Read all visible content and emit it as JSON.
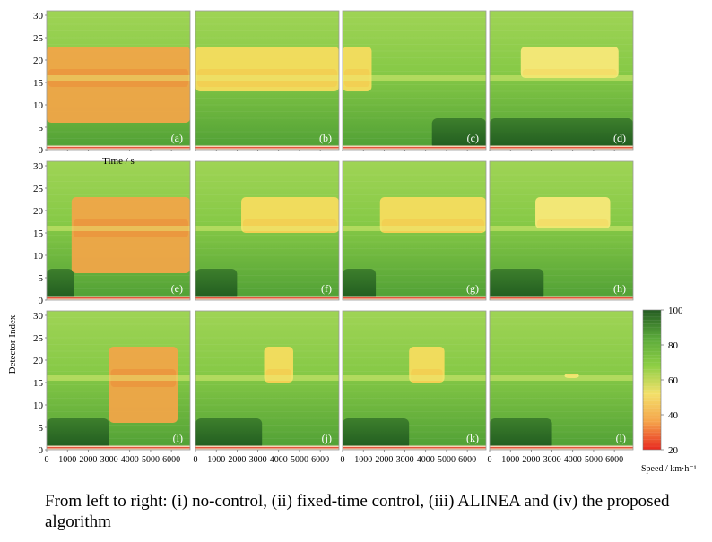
{
  "chart_data": {
    "type": "heatmap",
    "layout": "3x4 grid of space-time speed contour panels",
    "x_axis": {
      "label": "Time / s",
      "range": [
        0,
        6900
      ],
      "ticks": [
        0,
        1000,
        2000,
        3000,
        4000,
        5000,
        6000
      ]
    },
    "y_axis": {
      "label": "Detector Index",
      "range": [
        0,
        31
      ],
      "ticks": [
        0,
        5,
        10,
        15,
        20,
        25,
        30
      ]
    },
    "colorbar": {
      "label": "Speed / km·h⁻¹",
      "range": [
        20,
        100
      ],
      "ticks": [
        20,
        40,
        60,
        80,
        100
      ],
      "stops": [
        "#e8281f",
        "#f5a34a",
        "#f3e06a",
        "#8ecf45",
        "#5aa93a",
        "#245c22"
      ]
    },
    "panels": [
      {
        "label": "(a)",
        "row": 1,
        "col": 1,
        "congestion": [
          0,
          6900
        ],
        "congested_detectors": [
          6,
          23
        ],
        "severity": "high",
        "upstream_low_speed": null
      },
      {
        "label": "(b)",
        "row": 1,
        "col": 2,
        "congestion": [
          0,
          6900
        ],
        "congested_detectors": [
          13,
          23
        ],
        "severity": "medium",
        "upstream_low_speed": null
      },
      {
        "label": "(c)",
        "row": 1,
        "col": 3,
        "congestion": [
          0,
          1400
        ],
        "congested_detectors": [
          13,
          23
        ],
        "severity": "medium",
        "upstream_low_speed": [
          4300,
          6900
        ]
      },
      {
        "label": "(d)",
        "row": 1,
        "col": 4,
        "congestion": [
          1500,
          6200
        ],
        "congested_detectors": [
          16,
          23
        ],
        "severity": "light",
        "upstream_low_speed": [
          0,
          6900
        ]
      },
      {
        "label": "(e)",
        "row": 2,
        "col": 1,
        "congestion": [
          1200,
          6900
        ],
        "congested_detectors": [
          6,
          23
        ],
        "severity": "high",
        "upstream_low_speed": [
          0,
          1300
        ]
      },
      {
        "label": "(f)",
        "row": 2,
        "col": 2,
        "congestion": [
          2200,
          6900
        ],
        "congested_detectors": [
          15,
          23
        ],
        "severity": "medium",
        "upstream_low_speed": [
          0,
          2000
        ]
      },
      {
        "label": "(g)",
        "row": 2,
        "col": 3,
        "congestion": [
          1800,
          6900
        ],
        "congested_detectors": [
          15,
          23
        ],
        "severity": "medium",
        "upstream_low_speed": [
          0,
          1600
        ]
      },
      {
        "label": "(h)",
        "row": 2,
        "col": 4,
        "congestion": [
          2200,
          5800
        ],
        "congested_detectors": [
          16,
          23
        ],
        "severity": "light",
        "upstream_low_speed": [
          0,
          2600
        ]
      },
      {
        "label": "(i)",
        "row": 3,
        "col": 1,
        "congestion": [
          3000,
          6300
        ],
        "congested_detectors": [
          6,
          23
        ],
        "severity": "high",
        "upstream_low_speed": [
          0,
          3000
        ]
      },
      {
        "label": "(j)",
        "row": 3,
        "col": 2,
        "congestion": [
          3300,
          4700
        ],
        "congested_detectors": [
          15,
          23
        ],
        "severity": "medium",
        "upstream_low_speed": [
          0,
          3200
        ]
      },
      {
        "label": "(k)",
        "row": 3,
        "col": 3,
        "congestion": [
          3200,
          4900
        ],
        "congested_detectors": [
          15,
          23
        ],
        "severity": "medium",
        "upstream_low_speed": [
          0,
          3200
        ]
      },
      {
        "label": "(l)",
        "row": 3,
        "col": 4,
        "congestion": [
          3600,
          4300
        ],
        "congested_detectors": [
          16,
          17
        ],
        "severity": "light",
        "upstream_low_speed": [
          0,
          3000
        ]
      }
    ]
  },
  "caption": "From left to right: (i) no-control, (ii) fixed-time control, (iii) ALINEA and (iv) the proposed algorithm"
}
